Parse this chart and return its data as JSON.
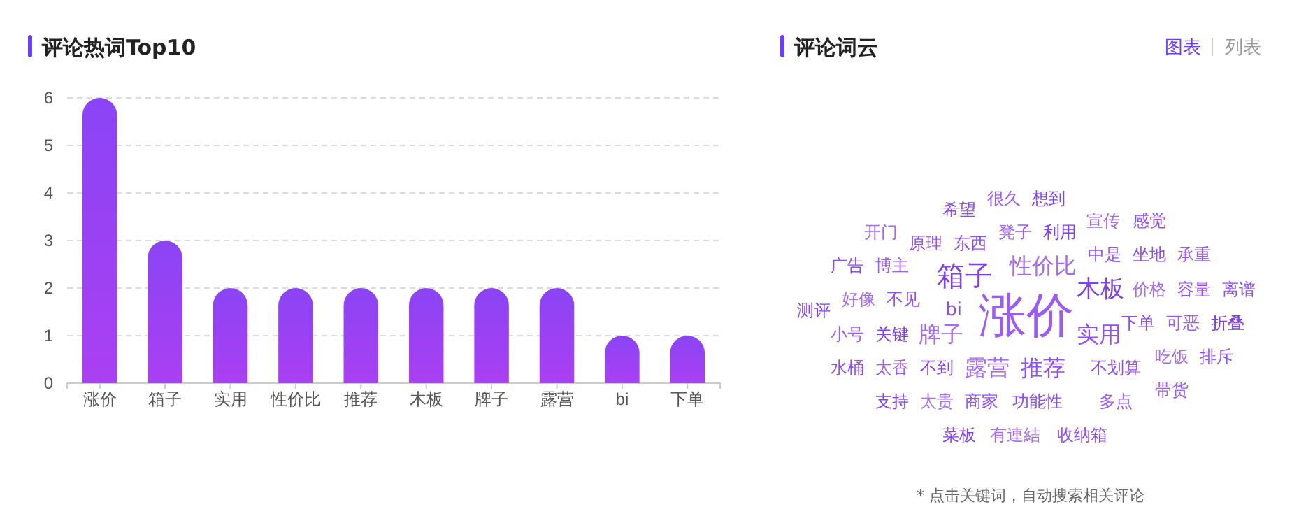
{
  "chart_data": [
    {
      "type": "bar",
      "title": "评论热词Top10",
      "categories": [
        "涨价",
        "箱子",
        "实用",
        "性价比",
        "推荐",
        "木板",
        "牌子",
        "露营",
        "bi",
        "下单"
      ],
      "values": [
        6,
        3,
        2,
        2,
        2,
        2,
        2,
        2,
        1,
        1
      ],
      "color": "#8a44f5",
      "ylim": [
        0,
        6
      ],
      "yticks": [
        0,
        1,
        2,
        3,
        4,
        5,
        6
      ],
      "grid": "y"
    },
    {
      "type": "other",
      "title": "评论词云",
      "categories": [
        "希望",
        "很久",
        "想到",
        "开门",
        "原理",
        "东西",
        "凳子",
        "利用",
        "宣传",
        "感觉",
        "广告",
        "博主",
        "箱子",
        "性价比",
        "中是",
        "坐地",
        "承重",
        "测评",
        "好像",
        "不见",
        "bi",
        "涨价",
        "木板",
        "价格",
        "容量",
        "离谱",
        "小号",
        "关键",
        "牌子",
        "实用",
        "下单",
        "可恶",
        "折叠",
        "吃饭",
        "排斥",
        "水桶",
        "太香",
        "不到",
        "露营",
        "推荐",
        "不划算",
        "带货",
        "支持",
        "太贵",
        "商家",
        "功能性",
        "多点",
        "菜板",
        "有連結",
        "收纳箱"
      ],
      "annotations": [
        "图表",
        "列表",
        "* 点击关键词，自动搜索相关评论"
      ]
    }
  ]
}
